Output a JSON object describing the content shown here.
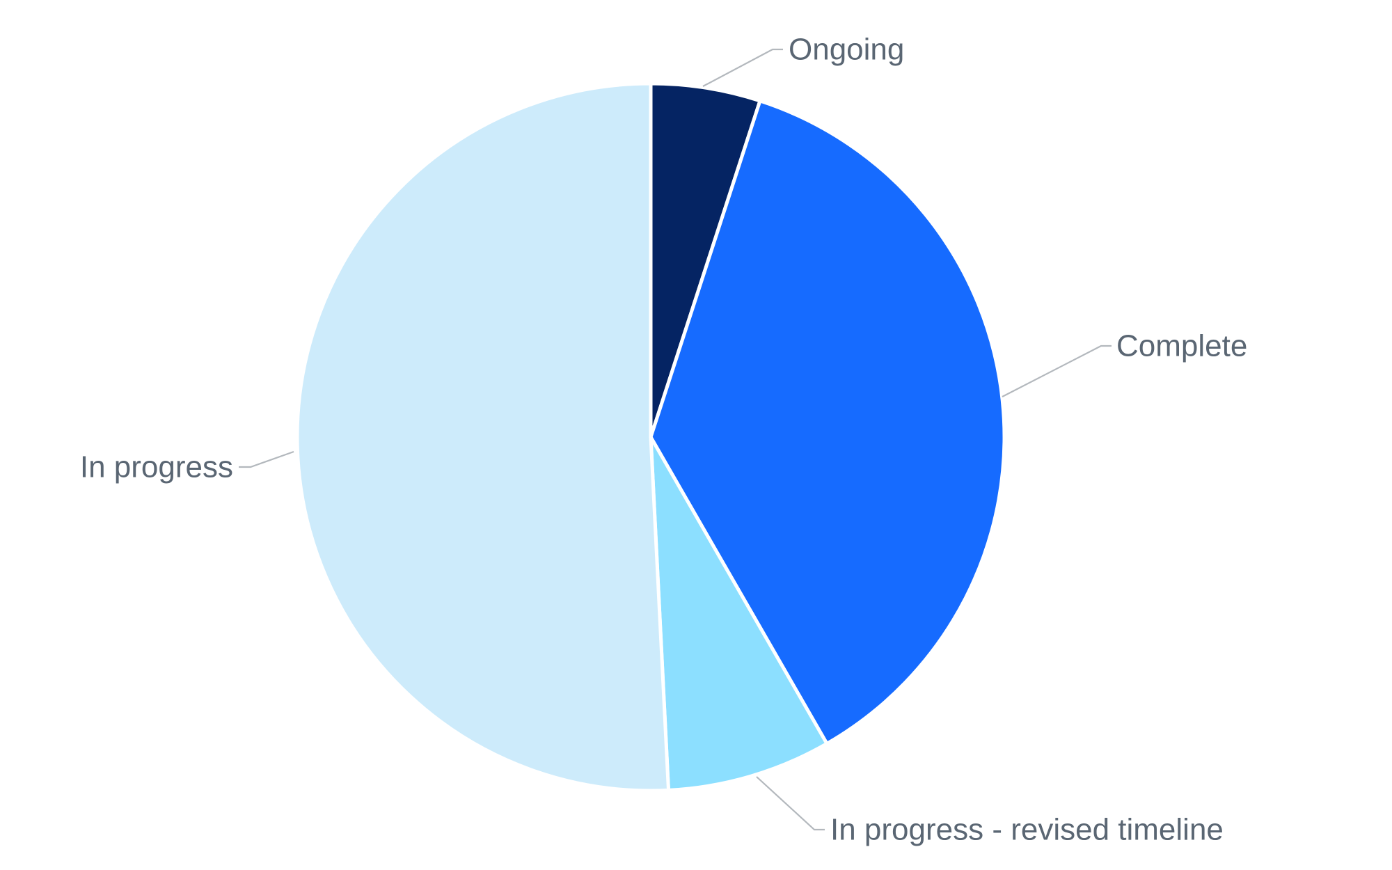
{
  "chart_data": {
    "type": "pie",
    "title": "",
    "start_angle_deg": 0,
    "direction": "clockwise",
    "legend": "none",
    "slices": [
      {
        "label": "Ongoing",
        "value": 5,
        "color": "#052463"
      },
      {
        "label": "Complete",
        "value": 36.7,
        "color": "#166bff"
      },
      {
        "label": "In progress - revised timeline",
        "value": 7.5,
        "color": "#8cdfff"
      },
      {
        "label": "In progress",
        "value": 50.8,
        "color": "#cdebfb"
      }
    ]
  }
}
